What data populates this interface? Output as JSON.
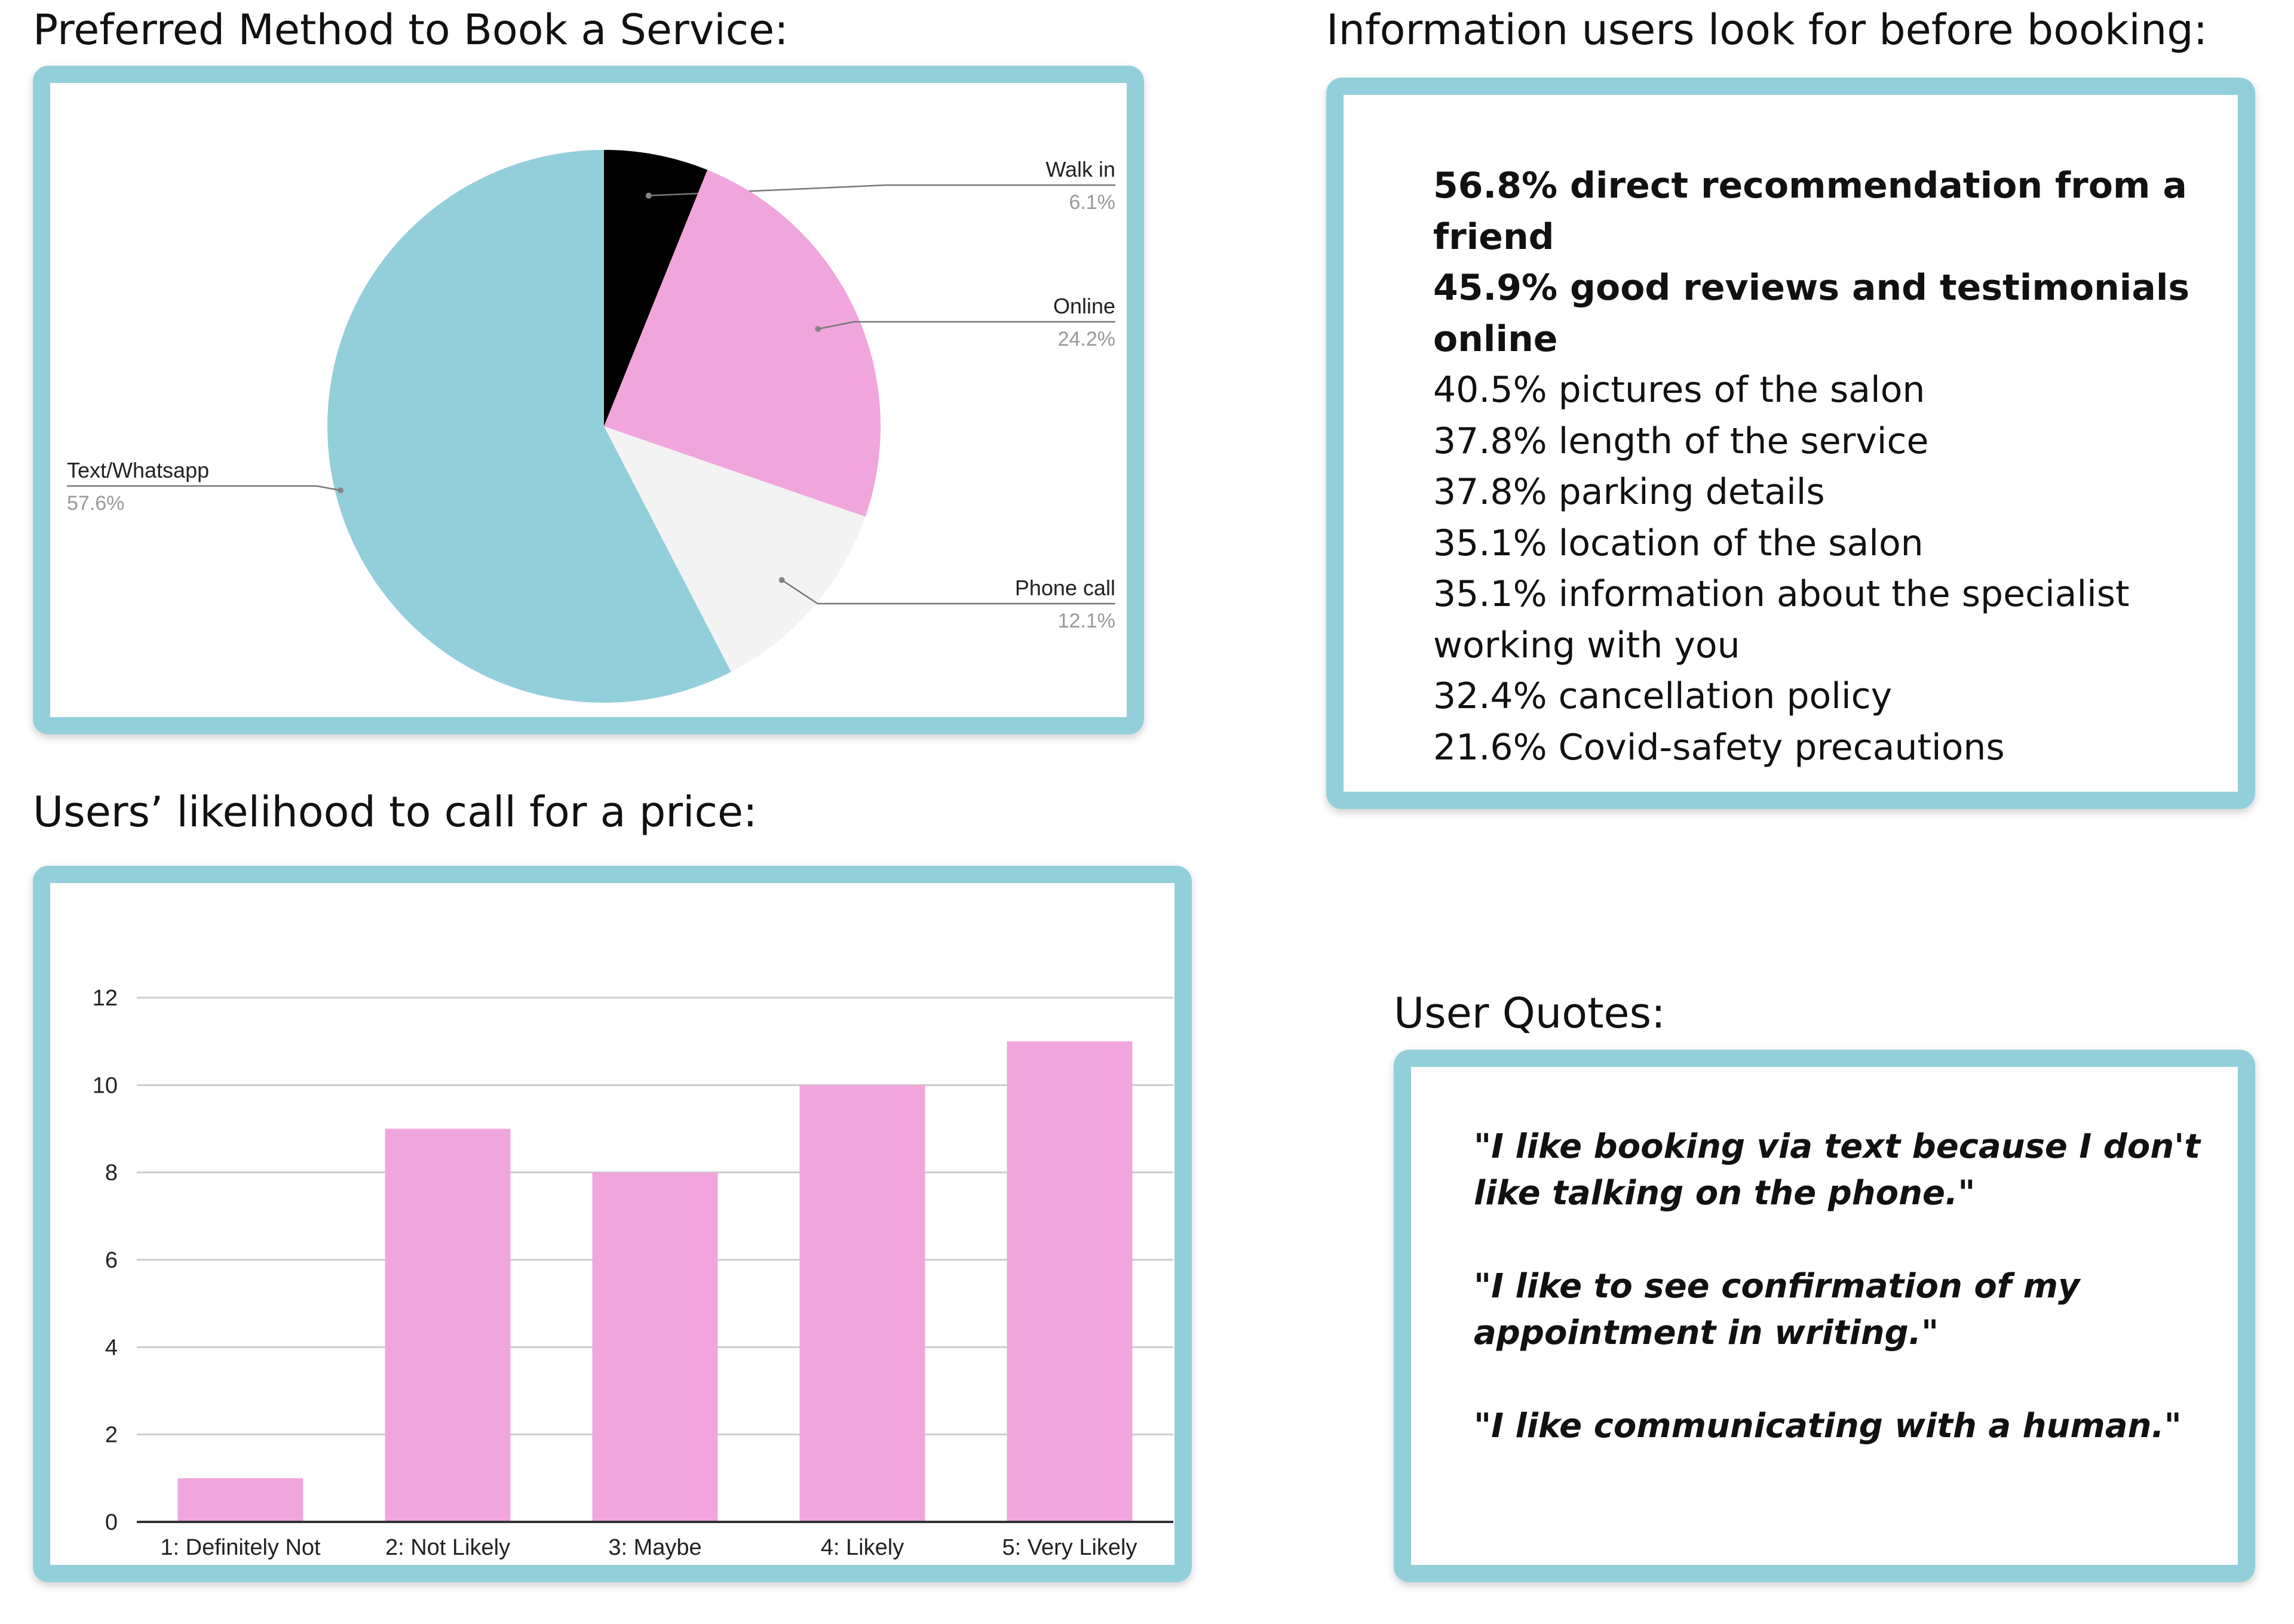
{
  "colors": {
    "frame": "#93cfda",
    "pink": "#f0a6dc",
    "teal": "#93cfda",
    "black": "#000000",
    "light": "#f3f3f3",
    "grid": "#cccccc",
    "axis": "#333333",
    "label": "#222222",
    "percent": "#999999"
  },
  "headings": {
    "pie": "Preferred Method to Book a Service:",
    "info": "Information users look for before booking:",
    "bar": "Users’ likelihood to call for a price:",
    "quotes": "User Quotes:"
  },
  "info_items": [
    {
      "text": "56.8% direct recommendation from a friend",
      "bold": true
    },
    {
      "text": "45.9% good reviews and testimonials online",
      "bold": true
    },
    {
      "text": "40.5% pictures of the salon",
      "bold": false
    },
    {
      "text": "37.8% length of the service",
      "bold": false
    },
    {
      "text": "37.8% parking details",
      "bold": false
    },
    {
      "text": "35.1% location of the salon",
      "bold": false
    },
    {
      "text": "35.1% information about the specialist working with you",
      "bold": false
    },
    {
      "text": "32.4% cancellation policy",
      "bold": false
    },
    {
      "text": "21.6% Covid-safety precautions",
      "bold": false
    }
  ],
  "quotes": [
    "\"I like booking via text because I don't like talking on the phone.\"",
    "\"I like to see confirmation of my appointment in writing.\"",
    "\"I like communicating with a human.\""
  ],
  "chart_data": [
    {
      "type": "pie",
      "title": "Preferred Method to Book a Service:",
      "slices": [
        {
          "label": "Walk in",
          "percent_label": "6.1%",
          "value": 6.1,
          "color": "#000000"
        },
        {
          "label": "Online",
          "percent_label": "24.2%",
          "value": 24.2,
          "color": "#f0a6dc"
        },
        {
          "label": "Phone call",
          "percent_label": "12.1%",
          "value": 12.1,
          "color": "#f3f3f3"
        },
        {
          "label": "Text/Whatsapp",
          "percent_label": "57.6%",
          "value": 57.6,
          "color": "#93cfda"
        }
      ]
    },
    {
      "type": "bar",
      "title": "Users’ likelihood to call for a price:",
      "categories": [
        "1: Definitely Not",
        "2: Not Likely",
        "3: Maybe",
        "4: Likely",
        "5: Very Likely"
      ],
      "values": [
        1,
        9,
        8,
        10,
        11
      ],
      "ylim": [
        0,
        12
      ],
      "yticks": [
        0,
        2,
        4,
        6,
        8,
        10,
        12
      ],
      "grid": true,
      "color": "#f0a6dc"
    }
  ]
}
